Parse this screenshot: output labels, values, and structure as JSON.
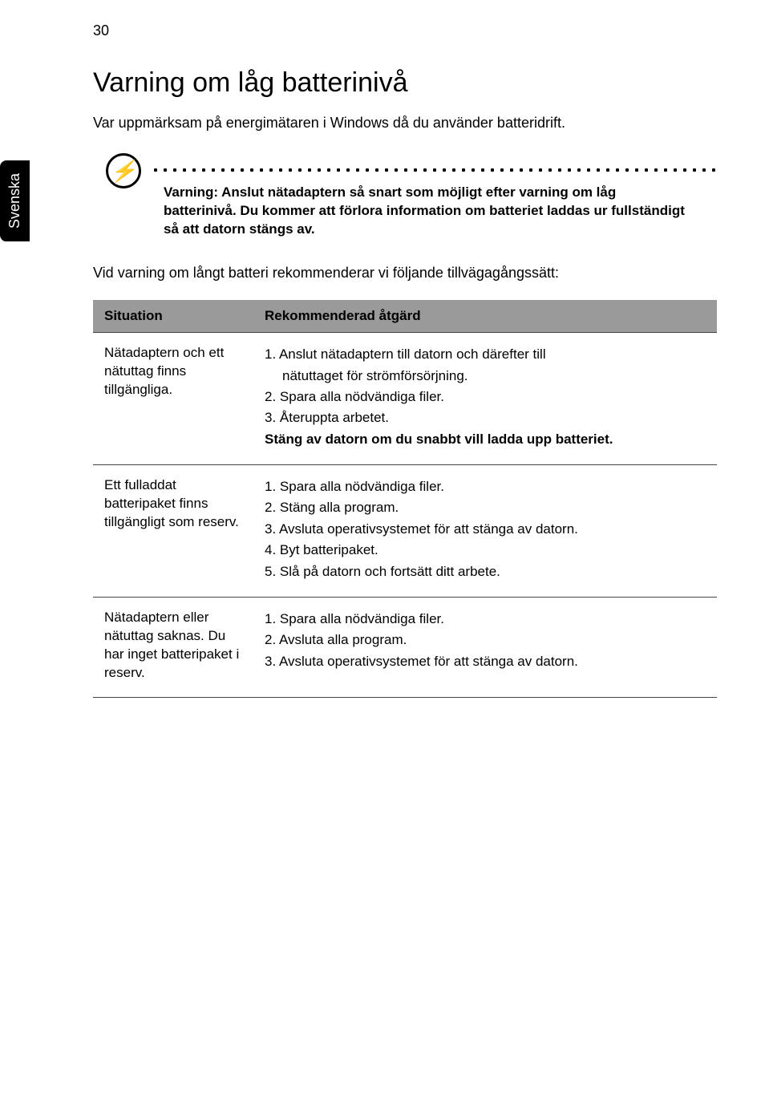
{
  "page_number": "30",
  "side_tab": "Svenska",
  "heading": "Varning om låg batterinivå",
  "intro": "Var uppmärksam på energimätaren i Windows då du använder batteridrift.",
  "note_icon_glyph": "⚡",
  "note_text": "Varning: Anslut nätadaptern så snart som möjligt efter varning om låg batterinivå. Du kommer att förlora information om batteriet laddas ur fullständigt så att datorn stängs av.",
  "lead": "Vid varning om långt batteri rekommenderar vi följande tillvägagångssätt:",
  "table": {
    "headers": {
      "situation": "Situation",
      "action": "Rekommenderad åtgärd"
    },
    "rows": [
      {
        "situation": "Nätadaptern och ett nätuttag finns tillgängliga.",
        "lines": [
          {
            "text": "1.  Anslut nätadaptern till datorn och därefter till",
            "bold": false,
            "indent": false
          },
          {
            "text": "nätuttaget för strömförsörjning.",
            "bold": false,
            "indent": true
          },
          {
            "text": "2.  Spara alla nödvändiga filer.",
            "bold": false,
            "indent": false
          },
          {
            "text": "3.  Återuppta arbetet.",
            "bold": false,
            "indent": false
          },
          {
            "text": "Stäng av datorn om du snabbt vill ladda upp batteriet.",
            "bold": true,
            "indent": false
          }
        ]
      },
      {
        "situation": "Ett fulladdat batteripaket finns tillgängligt som reserv.",
        "lines": [
          {
            "text": "1.  Spara alla nödvändiga filer.",
            "bold": false,
            "indent": false
          },
          {
            "text": "2.  Stäng alla program.",
            "bold": false,
            "indent": false
          },
          {
            "text": "3.  Avsluta operativsystemet för att stänga av datorn.",
            "bold": false,
            "indent": false
          },
          {
            "text": "4.  Byt batteripaket.",
            "bold": false,
            "indent": false
          },
          {
            "text": "5.  Slå på datorn och fortsätt ditt arbete.",
            "bold": false,
            "indent": false
          }
        ]
      },
      {
        "situation": "Nätadaptern eller nätuttag saknas. Du har inget batteripaket i reserv.",
        "lines": [
          {
            "text": "1.  Spara alla nödvändiga filer.",
            "bold": false,
            "indent": false
          },
          {
            "text": "2.  Avsluta alla program.",
            "bold": false,
            "indent": false
          },
          {
            "text": "3.  Avsluta operativsystemet för att stänga av datorn.",
            "bold": false,
            "indent": false
          }
        ]
      }
    ]
  },
  "colors": {
    "header_bg": "#9a9a9a",
    "border": "#444444",
    "text": "#000000",
    "bg": "#ffffff",
    "tab_bg": "#000000",
    "tab_text": "#ffffff"
  }
}
